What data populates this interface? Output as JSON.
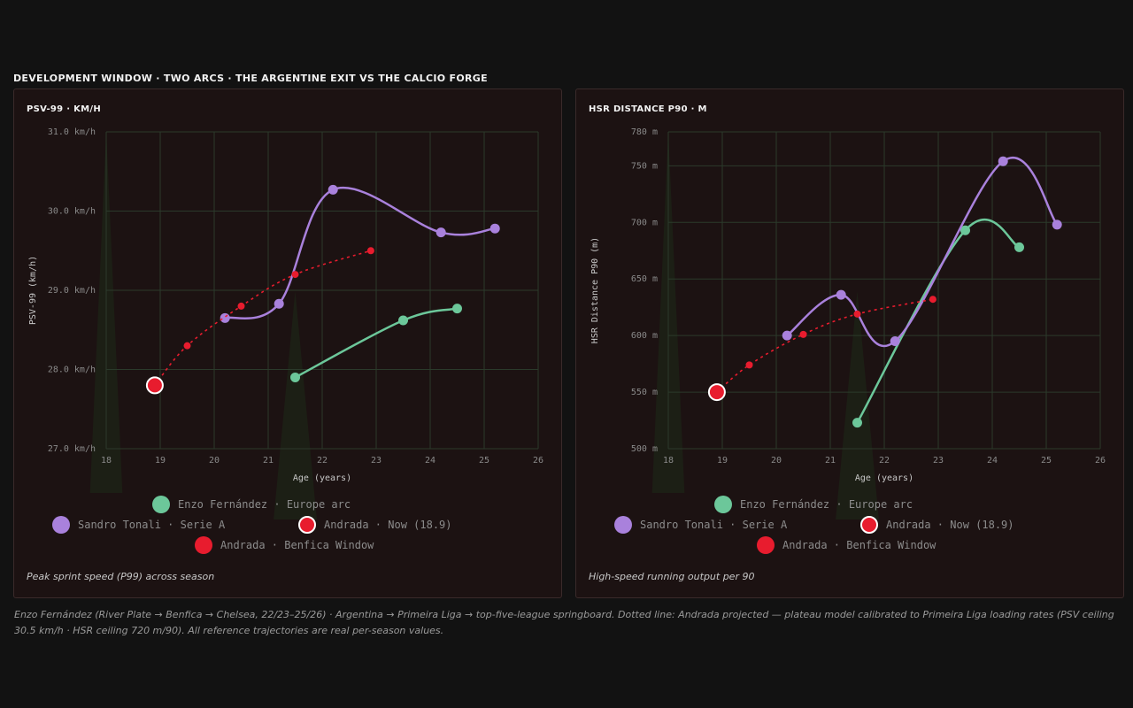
{
  "title": "DEVELOPMENT WINDOW · TWO ARCS · THE ARGENTINE EXIT VS THE CALCIO FORGE",
  "footnote": "Enzo Fernández (River Plate → Benfica → Chelsea, 22/23–25/26) · Argentina → Primeira Liga → top-five-league springboard. Dotted line: Andrada projected — plateau model calibrated to Primeira Liga loading rates (PSV ceiling 30.5 km/h · HSR ceiling 720 m/90). All reference trajectories are real per-season values.",
  "colors": {
    "background": "#121212",
    "panel": "#1c1212",
    "grid": "#2b3a2b",
    "enzo": "#6cc79a",
    "tonali": "#a981dc",
    "andrada": "#e81c2e"
  },
  "legend": [
    {
      "label": "Enzo Fernández · Europe arc",
      "color": "#6cc79a"
    },
    {
      "label": "Sandro Tonali · Serie A",
      "color": "#a981dc"
    },
    {
      "label": "Andrada · Now (18.9)",
      "color": "#e81c2e",
      "ring": true
    },
    {
      "label": "Andrada · Benfica Window",
      "color": "#e81c2e"
    }
  ],
  "chart_data": [
    {
      "type": "line",
      "title": "PSV-99 · KM/H",
      "caption": "Peak sprint speed (P99) across season",
      "xlabel": "Age (years)",
      "ylabel": "PSV-99 (km/h)",
      "xlim": [
        18,
        26
      ],
      "ylim": [
        27,
        31
      ],
      "xticks": [
        18,
        19,
        20,
        21,
        22,
        23,
        24,
        25,
        26
      ],
      "yticks": [
        27,
        28,
        29,
        30,
        31
      ],
      "ytick_labels": [
        "27.0 km/h",
        "28.0 km/h",
        "29.0 km/h",
        "30.0 km/h",
        "31.0 km/h"
      ],
      "grid": true,
      "legend_position": "bottom",
      "series": [
        {
          "name": "Enzo Fernández · Europe arc",
          "style": "solid",
          "x": [
            21.5,
            23.5,
            24.5
          ],
          "y": [
            27.9,
            28.62,
            28.77
          ]
        },
        {
          "name": "Sandro Tonali · Serie A",
          "style": "solid",
          "x": [
            20.2,
            21.2,
            22.2,
            24.2,
            25.2
          ],
          "y": [
            28.65,
            28.83,
            30.27,
            29.73,
            29.78
          ]
        },
        {
          "name": "Andrada · Benfica Window",
          "style": "dotted",
          "x": [
            18.9,
            19.5,
            20.5,
            21.5,
            22.9
          ],
          "y": [
            27.8,
            28.3,
            28.8,
            29.2,
            29.5
          ]
        },
        {
          "name": "Andrada · Now (18.9)",
          "style": "marker",
          "x": [
            18.9
          ],
          "y": [
            27.8
          ]
        }
      ]
    },
    {
      "type": "line",
      "title": "HSR DISTANCE P90 · M",
      "caption": "High-speed running output per 90",
      "xlabel": "Age (years)",
      "ylabel": "HSR Distance P90 (m)",
      "xlim": [
        18,
        26
      ],
      "ylim": [
        500,
        780
      ],
      "xticks": [
        18,
        19,
        20,
        21,
        22,
        23,
        24,
        25,
        26
      ],
      "yticks": [
        500,
        550,
        600,
        650,
        700,
        750,
        780
      ],
      "ytick_labels": [
        "500 m",
        "550 m",
        "600 m",
        "650 m",
        "700 m",
        "750 m",
        "780 m"
      ],
      "grid": true,
      "legend_position": "bottom",
      "series": [
        {
          "name": "Enzo Fernández · Europe arc",
          "style": "solid",
          "x": [
            21.5,
            23.5,
            24.5
          ],
          "y": [
            523,
            693,
            678
          ]
        },
        {
          "name": "Sandro Tonali · Serie A",
          "style": "solid",
          "x": [
            20.2,
            21.2,
            22.2,
            24.2,
            25.2
          ],
          "y": [
            600,
            636,
            595,
            754,
            698
          ]
        },
        {
          "name": "Andrada · Benfica Window",
          "style": "dotted",
          "x": [
            18.9,
            19.5,
            20.5,
            21.5,
            22.9
          ],
          "y": [
            550,
            574,
            601,
            619,
            632
          ]
        },
        {
          "name": "Andrada · Now (18.9)",
          "style": "marker",
          "x": [
            18.9
          ],
          "y": [
            550
          ]
        }
      ]
    }
  ]
}
